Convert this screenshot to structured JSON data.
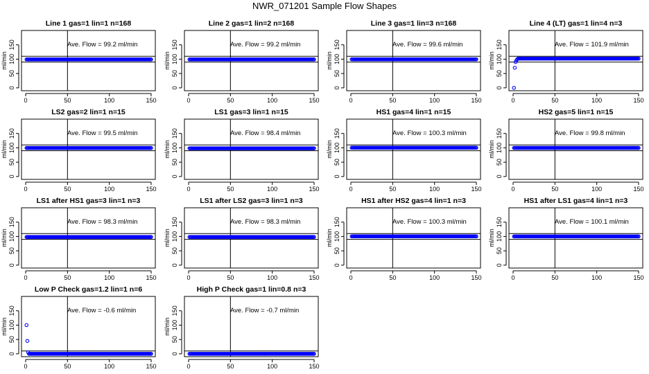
{
  "title": "NWR_071201  Sample Flow Shapes",
  "colors": {
    "points": "#0000ff",
    "frame": "#000000",
    "background": "#ffffff"
  },
  "chart_data": [
    {
      "type": "scatter",
      "title": "Line 1 gas=1 lin=1 n=168",
      "annotation": "Ave. Flow =  99.2  ml/min",
      "ylabel": "ml/min",
      "xlim": [
        0,
        150
      ],
      "ylim": [
        -10,
        200
      ],
      "xticks": [
        0,
        50,
        100,
        150
      ],
      "yticks": [
        0,
        50,
        100,
        150
      ],
      "vline": 50,
      "hlines": [
        90,
        110
      ],
      "x": {
        "from": 1,
        "to": 150
      },
      "y_constant": 99.2,
      "y_head": []
    },
    {
      "type": "scatter",
      "title": "Line 2 gas=1 lin=2 n=168",
      "annotation": "Ave. Flow =  99.2  ml/min",
      "ylabel": "ml/min",
      "xlim": [
        0,
        150
      ],
      "ylim": [
        -10,
        200
      ],
      "xticks": [
        0,
        50,
        100,
        150
      ],
      "yticks": [
        0,
        50,
        100,
        150
      ],
      "vline": 50,
      "hlines": [
        90,
        110
      ],
      "x": {
        "from": 1,
        "to": 150
      },
      "y_constant": 99.2,
      "y_head": []
    },
    {
      "type": "scatter",
      "title": "Line 3 gas=1 lin=3 n=168",
      "annotation": "Ave. Flow =  99.6  ml/min",
      "ylabel": "ml/min",
      "xlim": [
        0,
        150
      ],
      "ylim": [
        -10,
        200
      ],
      "xticks": [
        0,
        50,
        100,
        150
      ],
      "yticks": [
        0,
        50,
        100,
        150
      ],
      "vline": 50,
      "hlines": [
        90,
        110
      ],
      "x": {
        "from": 1,
        "to": 150
      },
      "y_constant": 99.6,
      "y_head": []
    },
    {
      "type": "scatter",
      "title": "Line 4 (LT) gas=1 lin=4 n=3",
      "annotation": "Ave. Flow =  101.9  ml/min",
      "ylabel": "ml/min",
      "xlim": [
        0,
        150
      ],
      "ylim": [
        -10,
        200
      ],
      "xticks": [
        0,
        50,
        100,
        150
      ],
      "yticks": [
        0,
        50,
        100,
        150
      ],
      "vline": 50,
      "hlines": [
        90,
        110
      ],
      "x": {
        "from": 1,
        "to": 150
      },
      "y_constant": 102,
      "y_head": [
        0,
        70,
        90,
        96,
        100
      ]
    },
    {
      "type": "scatter",
      "title": "LS2 gas=2 lin=1 n=15",
      "annotation": "Ave. Flow =  99.5  ml/min",
      "ylabel": "ml/min",
      "xlim": [
        0,
        150
      ],
      "ylim": [
        -10,
        200
      ],
      "xticks": [
        0,
        50,
        100,
        150
      ],
      "yticks": [
        0,
        50,
        100,
        150
      ],
      "vline": 50,
      "hlines": [
        90,
        110
      ],
      "x": {
        "from": 1,
        "to": 150
      },
      "y_constant": 99.5,
      "y_head": []
    },
    {
      "type": "scatter",
      "title": "LS1 gas=3 lin=1 n=15",
      "annotation": "Ave. Flow =  98.4  ml/min",
      "ylabel": "ml/min",
      "xlim": [
        0,
        150
      ],
      "ylim": [
        -10,
        200
      ],
      "xticks": [
        0,
        50,
        100,
        150
      ],
      "yticks": [
        0,
        50,
        100,
        150
      ],
      "vline": 50,
      "hlines": [
        90,
        110
      ],
      "x": {
        "from": 1,
        "to": 150
      },
      "y_constant": 98.4,
      "y_head": []
    },
    {
      "type": "scatter",
      "title": "HS1 gas=4 lin=1 n=15",
      "annotation": "Ave. Flow =  100.3  ml/min",
      "ylabel": "ml/min",
      "xlim": [
        0,
        150
      ],
      "ylim": [
        -10,
        200
      ],
      "xticks": [
        0,
        50,
        100,
        150
      ],
      "yticks": [
        0,
        50,
        100,
        150
      ],
      "vline": 50,
      "hlines": [
        90,
        110
      ],
      "x": {
        "from": 1,
        "to": 150
      },
      "y_constant": 100.3,
      "y_head": []
    },
    {
      "type": "scatter",
      "title": "HS2 gas=5 lin=1 n=15",
      "annotation": "Ave. Flow =  99.8  ml/min",
      "ylabel": "ml/min",
      "xlim": [
        0,
        150
      ],
      "ylim": [
        -10,
        200
      ],
      "xticks": [
        0,
        50,
        100,
        150
      ],
      "yticks": [
        0,
        50,
        100,
        150
      ],
      "vline": 50,
      "hlines": [
        90,
        110
      ],
      "x": {
        "from": 1,
        "to": 150
      },
      "y_constant": 99.8,
      "y_head": []
    },
    {
      "type": "scatter",
      "title": "LS1 after HS1 gas=3 lin=1 n=3",
      "annotation": "Ave. Flow =  98.3  ml/min",
      "ylabel": "ml/min",
      "xlim": [
        0,
        150
      ],
      "ylim": [
        -10,
        200
      ],
      "xticks": [
        0,
        50,
        100,
        150
      ],
      "yticks": [
        0,
        50,
        100,
        150
      ],
      "vline": 50,
      "hlines": [
        90,
        110
      ],
      "x": {
        "from": 1,
        "to": 150
      },
      "y_constant": 98.3,
      "y_head": []
    },
    {
      "type": "scatter",
      "title": "LS1 after LS2 gas=3 lin=1 n=3",
      "annotation": "Ave. Flow =  98.3  ml/min",
      "ylabel": "ml/min",
      "xlim": [
        0,
        150
      ],
      "ylim": [
        -10,
        200
      ],
      "xticks": [
        0,
        50,
        100,
        150
      ],
      "yticks": [
        0,
        50,
        100,
        150
      ],
      "vline": 50,
      "hlines": [
        90,
        110
      ],
      "x": {
        "from": 1,
        "to": 150
      },
      "y_constant": 98.3,
      "y_head": []
    },
    {
      "type": "scatter",
      "title": "HS1 after HS2 gas=4 lin=1 n=3",
      "annotation": "Ave. Flow =  100.3  ml/min",
      "ylabel": "ml/min",
      "xlim": [
        0,
        150
      ],
      "ylim": [
        -10,
        200
      ],
      "xticks": [
        0,
        50,
        100,
        150
      ],
      "yticks": [
        0,
        50,
        100,
        150
      ],
      "vline": 50,
      "hlines": [
        90,
        110
      ],
      "x": {
        "from": 1,
        "to": 150
      },
      "y_constant": 100.3,
      "y_head": []
    },
    {
      "type": "scatter",
      "title": "HS1 after LS1 gas=4 lin=1 n=3",
      "annotation": "Ave. Flow =  100.1  ml/min",
      "ylabel": "ml/min",
      "xlim": [
        0,
        150
      ],
      "ylim": [
        -10,
        200
      ],
      "xticks": [
        0,
        50,
        100,
        150
      ],
      "yticks": [
        0,
        50,
        100,
        150
      ],
      "vline": 50,
      "hlines": [
        90,
        110
      ],
      "x": {
        "from": 1,
        "to": 150
      },
      "y_constant": 100.1,
      "y_head": []
    },
    {
      "type": "scatter",
      "title": "Low P Check gas=1.2 lin=1 n=6",
      "annotation": "Ave. Flow =  -0.6  ml/min",
      "ylabel": "ml/min",
      "xlim": [
        0,
        150
      ],
      "ylim": [
        -10,
        200
      ],
      "xticks": [
        0,
        50,
        100,
        150
      ],
      "yticks": [
        0,
        50,
        100,
        150
      ],
      "vline": 50,
      "hlines": [
        -10,
        10
      ],
      "x": {
        "from": 1,
        "to": 150
      },
      "y_constant": 0,
      "y_head": [
        100,
        45,
        5
      ]
    },
    {
      "type": "scatter",
      "title": "High P Check gas=1 lin=0.8 n=3",
      "annotation": "Ave. Flow =  -0.7  ml/min",
      "ylabel": "ml/min",
      "xlim": [
        0,
        150
      ],
      "ylim": [
        -10,
        200
      ],
      "xticks": [
        0,
        50,
        100,
        150
      ],
      "yticks": [
        0,
        50,
        100,
        150
      ],
      "vline": 50,
      "hlines": [
        -10,
        10
      ],
      "x": {
        "from": 1,
        "to": 150
      },
      "y_constant": 0,
      "y_head": []
    }
  ]
}
